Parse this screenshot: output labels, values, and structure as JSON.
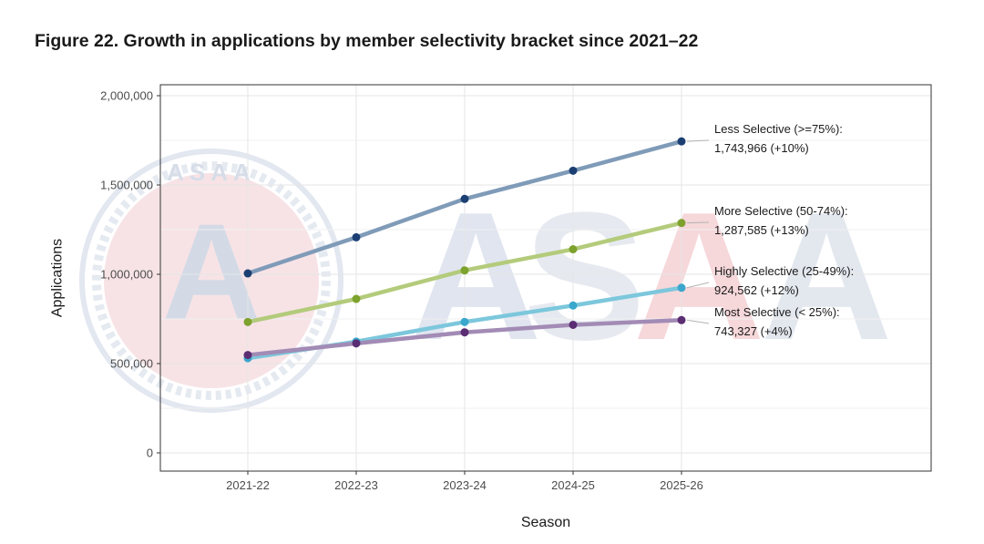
{
  "chart_data": {
    "type": "line",
    "title": "Figure 22. Growth in applications by member selectivity bracket since 2021–22",
    "xlabel": "Season",
    "ylabel": "Applications",
    "categories": [
      "2021-22",
      "2022-23",
      "2023-24",
      "2024-25",
      "2025-26"
    ],
    "ylim": [
      0,
      2000000
    ],
    "yticks": [
      0,
      500000,
      1000000,
      1500000,
      2000000
    ],
    "ytick_labels": [
      "0",
      "500,000",
      "1,000,000",
      "1,500,000",
      "2,000,000"
    ],
    "grid": true,
    "legend": "direct labels at right end of each line",
    "series": [
      {
        "name": "Less Selective (>=75%)",
        "values": [
          1005000,
          1207000,
          1422000,
          1580000,
          1743966
        ],
        "label_line1": "Less Selective (>=75%):",
        "label_line2": "1,743,966 (+10%)",
        "line_color": "#7f9bb8",
        "point_color": "#1c3f73"
      },
      {
        "name": "More Selective (50-74%)",
        "values": [
          733000,
          862000,
          1022000,
          1140000,
          1287585
        ],
        "label_line1": "More Selective (50-74%):",
        "label_line2": "1,287,585 (+13%)",
        "line_color": "#b3cb7b",
        "point_color": "#7da22e"
      },
      {
        "name": "Highly Selective (25-49%)",
        "values": [
          530000,
          623000,
          733000,
          825000,
          924562
        ],
        "label_line1": "Highly Selective (25-49%):",
        "label_line2": "924,562 (+12%)",
        "line_color": "#7cc7dc",
        "point_color": "#3aa7cc"
      },
      {
        "name": "Most Selective (< 25%)",
        "values": [
          548000,
          613000,
          675000,
          717000,
          743327
        ],
        "label_line1": "Most Selective (< 25%):",
        "label_line2": "743,327 (+4%)",
        "line_color": "#a28bb5",
        "point_color": "#5b2d73"
      }
    ]
  },
  "watermark": {
    "seal_text": "ASAA",
    "letters": [
      "A",
      "S",
      "A",
      "A"
    ],
    "seal_letter": "A",
    "colors": {
      "blue": "#c9d3e6",
      "red": "#f4c9cd",
      "grey": "#dde2ea"
    }
  },
  "colors": {
    "grid": "#e6e6e6",
    "axis": "#333333",
    "leader": "#b3b3b3"
  }
}
